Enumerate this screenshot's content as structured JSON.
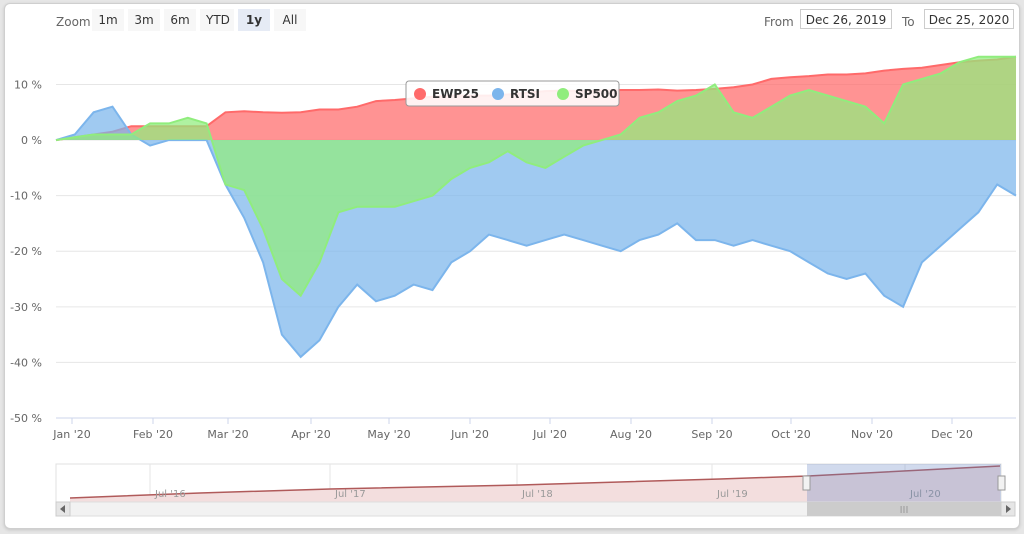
{
  "toolbar": {
    "zoom_label": "Zoom",
    "buttons": [
      "1m",
      "3m",
      "6m",
      "YTD",
      "1y",
      "All"
    ],
    "active_button": "1y",
    "from_label": "From",
    "from_value": "Dec 26, 2019",
    "to_label": "To",
    "to_value": "Dec 25, 2020"
  },
  "colors": {
    "EWP25": "#ff6a6a",
    "RTSI": "#7cb5ec",
    "SP500": "#90ed7d"
  },
  "navigator": {
    "labels": [
      "Jul '16",
      "Jul '17",
      "Jul '18",
      "Jul '19",
      "Jul '20"
    ],
    "scroll_grip": "III"
  },
  "chart_data": {
    "type": "area",
    "title": "",
    "xlabel": "",
    "ylabel": "",
    "x_ticks": [
      "Jan '20",
      "Feb '20",
      "Mar '20",
      "Apr '20",
      "May '20",
      "Jun '20",
      "Jul '20",
      "Aug '20",
      "Sep '20",
      "Oct '20",
      "Nov '20",
      "Dec '20"
    ],
    "y_ticks": [
      "10 %",
      "0 %",
      "-10 %",
      "-20 %",
      "-30 %",
      "-40 %",
      "-50 %"
    ],
    "ylim": [
      -50,
      18
    ],
    "legend_position": "top-center",
    "x": [
      "Dec 26, 2019",
      "Jan 5, 2020",
      "Jan 12",
      "Jan 20",
      "Jan 27",
      "Feb 3",
      "Feb 10",
      "Feb 17",
      "Feb 24",
      "Mar 2",
      "Mar 9",
      "Mar 16",
      "Mar 23",
      "Mar 30",
      "Apr 6",
      "Apr 13",
      "Apr 20",
      "Apr 27",
      "May 4",
      "May 11",
      "May 18",
      "May 25",
      "Jun 1",
      "Jun 8",
      "Jun 15",
      "Jun 22",
      "Jun 29",
      "Jul 6",
      "Jul 13",
      "Jul 20",
      "Jul 27",
      "Aug 3",
      "Aug 10",
      "Aug 17",
      "Aug 24",
      "Aug 31",
      "Sep 7",
      "Sep 14",
      "Sep 21",
      "Sep 28",
      "Oct 5",
      "Oct 12",
      "Oct 19",
      "Oct 26",
      "Nov 2",
      "Nov 9",
      "Nov 16",
      "Nov 23",
      "Nov 30",
      "Dec 7",
      "Dec 14",
      "Dec 25, 2020"
    ],
    "series": [
      {
        "name": "EWP25",
        "values": [
          0,
          0.5,
          1,
          1.5,
          2.5,
          2.5,
          2.5,
          2.5,
          2.5,
          5,
          5.2,
          5,
          4.9,
          5,
          5.5,
          5.5,
          6,
          7,
          7.2,
          7.5,
          7.8,
          8,
          8,
          8,
          8.2,
          8.5,
          8.8,
          8.9,
          8.8,
          8.9,
          9,
          9,
          9.1,
          8.9,
          9,
          9.2,
          9.5,
          10,
          11,
          11.3,
          11.5,
          11.8,
          11.8,
          12,
          12.5,
          12.8,
          13,
          13.5,
          14,
          14.3,
          14.5,
          15
        ]
      },
      {
        "name": "RTSI",
        "values": [
          0,
          1,
          5,
          6,
          1,
          -1,
          0,
          0,
          0,
          -8,
          -14,
          -22,
          -35,
          -39,
          -36,
          -30,
          -26,
          -29,
          -28,
          -26,
          -27,
          -22,
          -20,
          -17,
          -18,
          -19,
          -18,
          -17,
          -18,
          -19,
          -20,
          -18,
          -17,
          -15,
          -18,
          -18,
          -19,
          -18,
          -19,
          -20,
          -22,
          -24,
          -25,
          -24,
          -28,
          -30,
          -22,
          -19,
          -16,
          -13,
          -8,
          -10
        ]
      },
      {
        "name": "SP500",
        "values": [
          0,
          0.5,
          1,
          1,
          1,
          3,
          3,
          4,
          3,
          -8,
          -9,
          -16,
          -25,
          -28,
          -22,
          -13,
          -12,
          -12,
          -12,
          -11,
          -10,
          -7,
          -5,
          -4,
          -2,
          -4,
          -5,
          -3,
          -1,
          0,
          1,
          4,
          5,
          7,
          8,
          10,
          5,
          4,
          6,
          8,
          9,
          8,
          7,
          6,
          3,
          10,
          11,
          12,
          14,
          15,
          15,
          15
        ]
      }
    ]
  }
}
